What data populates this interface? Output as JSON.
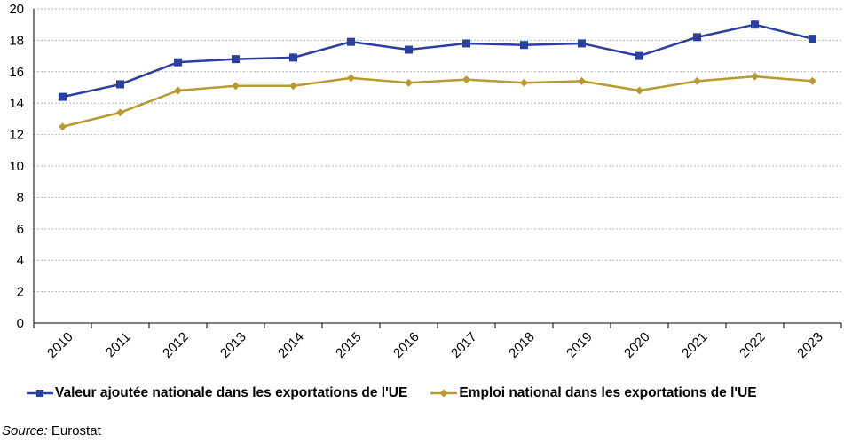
{
  "chart_data": {
    "type": "line",
    "title": "",
    "xlabel": "",
    "ylabel": "",
    "x": [
      "2010",
      "2011",
      "2012",
      "2013",
      "2014",
      "2015",
      "2016",
      "2017",
      "2018",
      "2019",
      "2020",
      "2021",
      "2022",
      "2023"
    ],
    "ylim": [
      0,
      20
    ],
    "yticks": [
      "0",
      "2",
      "4",
      "6",
      "8",
      "10",
      "12",
      "14",
      "16",
      "18",
      "20"
    ],
    "grid": true,
    "legend_position": "bottom",
    "series": [
      {
        "name": "Valeur ajoutée nationale dans les exportations de l'UE",
        "color": "#2b3f9e",
        "marker": "square",
        "values": [
          14.4,
          15.2,
          16.6,
          16.8,
          16.9,
          17.9,
          17.4,
          17.8,
          17.7,
          17.8,
          17.0,
          18.2,
          19.0,
          18.1
        ]
      },
      {
        "name": "Emploi national dans les exportations de l'UE",
        "color": "#b89a2f",
        "marker": "diamond",
        "values": [
          12.5,
          13.4,
          14.8,
          15.1,
          15.1,
          15.6,
          15.3,
          15.5,
          15.3,
          15.4,
          14.8,
          15.4,
          15.7,
          15.4
        ]
      }
    ]
  },
  "source": {
    "label": "Source:",
    "text": "Eurostat"
  }
}
